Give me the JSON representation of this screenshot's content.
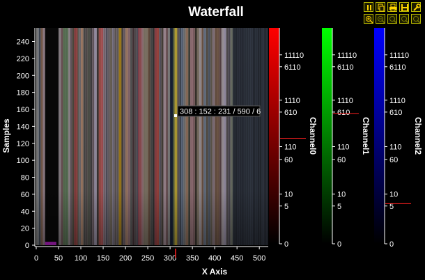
{
  "chart_data": {
    "type": "heatmap",
    "title": "Waterfall",
    "xlabel": "X Axis",
    "ylabel": "Samples",
    "xlim": [
      0,
      520
    ],
    "ylim": [
      0,
      256
    ],
    "x_ticks": [
      0,
      50,
      100,
      150,
      200,
      250,
      300,
      350,
      400,
      450,
      500
    ],
    "y_ticks": [
      0,
      20,
      40,
      60,
      80,
      100,
      120,
      140,
      160,
      180,
      200,
      220,
      240
    ],
    "cursor": {
      "x": 308,
      "y": 152,
      "label": "308 : 152 : 231 / 590 / 6"
    },
    "channels": [
      {
        "name": "Channel0",
        "color": "#ff0000",
        "tick_labels": [
          "0",
          "5",
          "10",
          "60",
          "110",
          "610",
          "1110",
          "6110",
          "11110"
        ],
        "marker": "231"
      },
      {
        "name": "Channel1",
        "color": "#00ff00",
        "tick_labels": [
          "0",
          "5",
          "10",
          "60",
          "110",
          "610",
          "1110",
          "6110",
          "11110"
        ],
        "marker": "590"
      },
      {
        "name": "Channel2",
        "color": "#0000ff",
        "tick_labels": [
          "0",
          "5",
          "10",
          "60",
          "110",
          "610",
          "1110",
          "6110",
          "11110"
        ],
        "marker": "6"
      }
    ],
    "color_scale": "log",
    "scale_range": [
      0,
      11110
    ]
  },
  "toolbar": {
    "buttons": [
      "pause-icon",
      "copy-icon",
      "print-icon",
      "save-icon",
      "settings-icon",
      "zoom-in-icon",
      "zoom-out-icon",
      "zoom-x-icon",
      "zoom-y-icon",
      "zoom-reset-icon"
    ]
  }
}
